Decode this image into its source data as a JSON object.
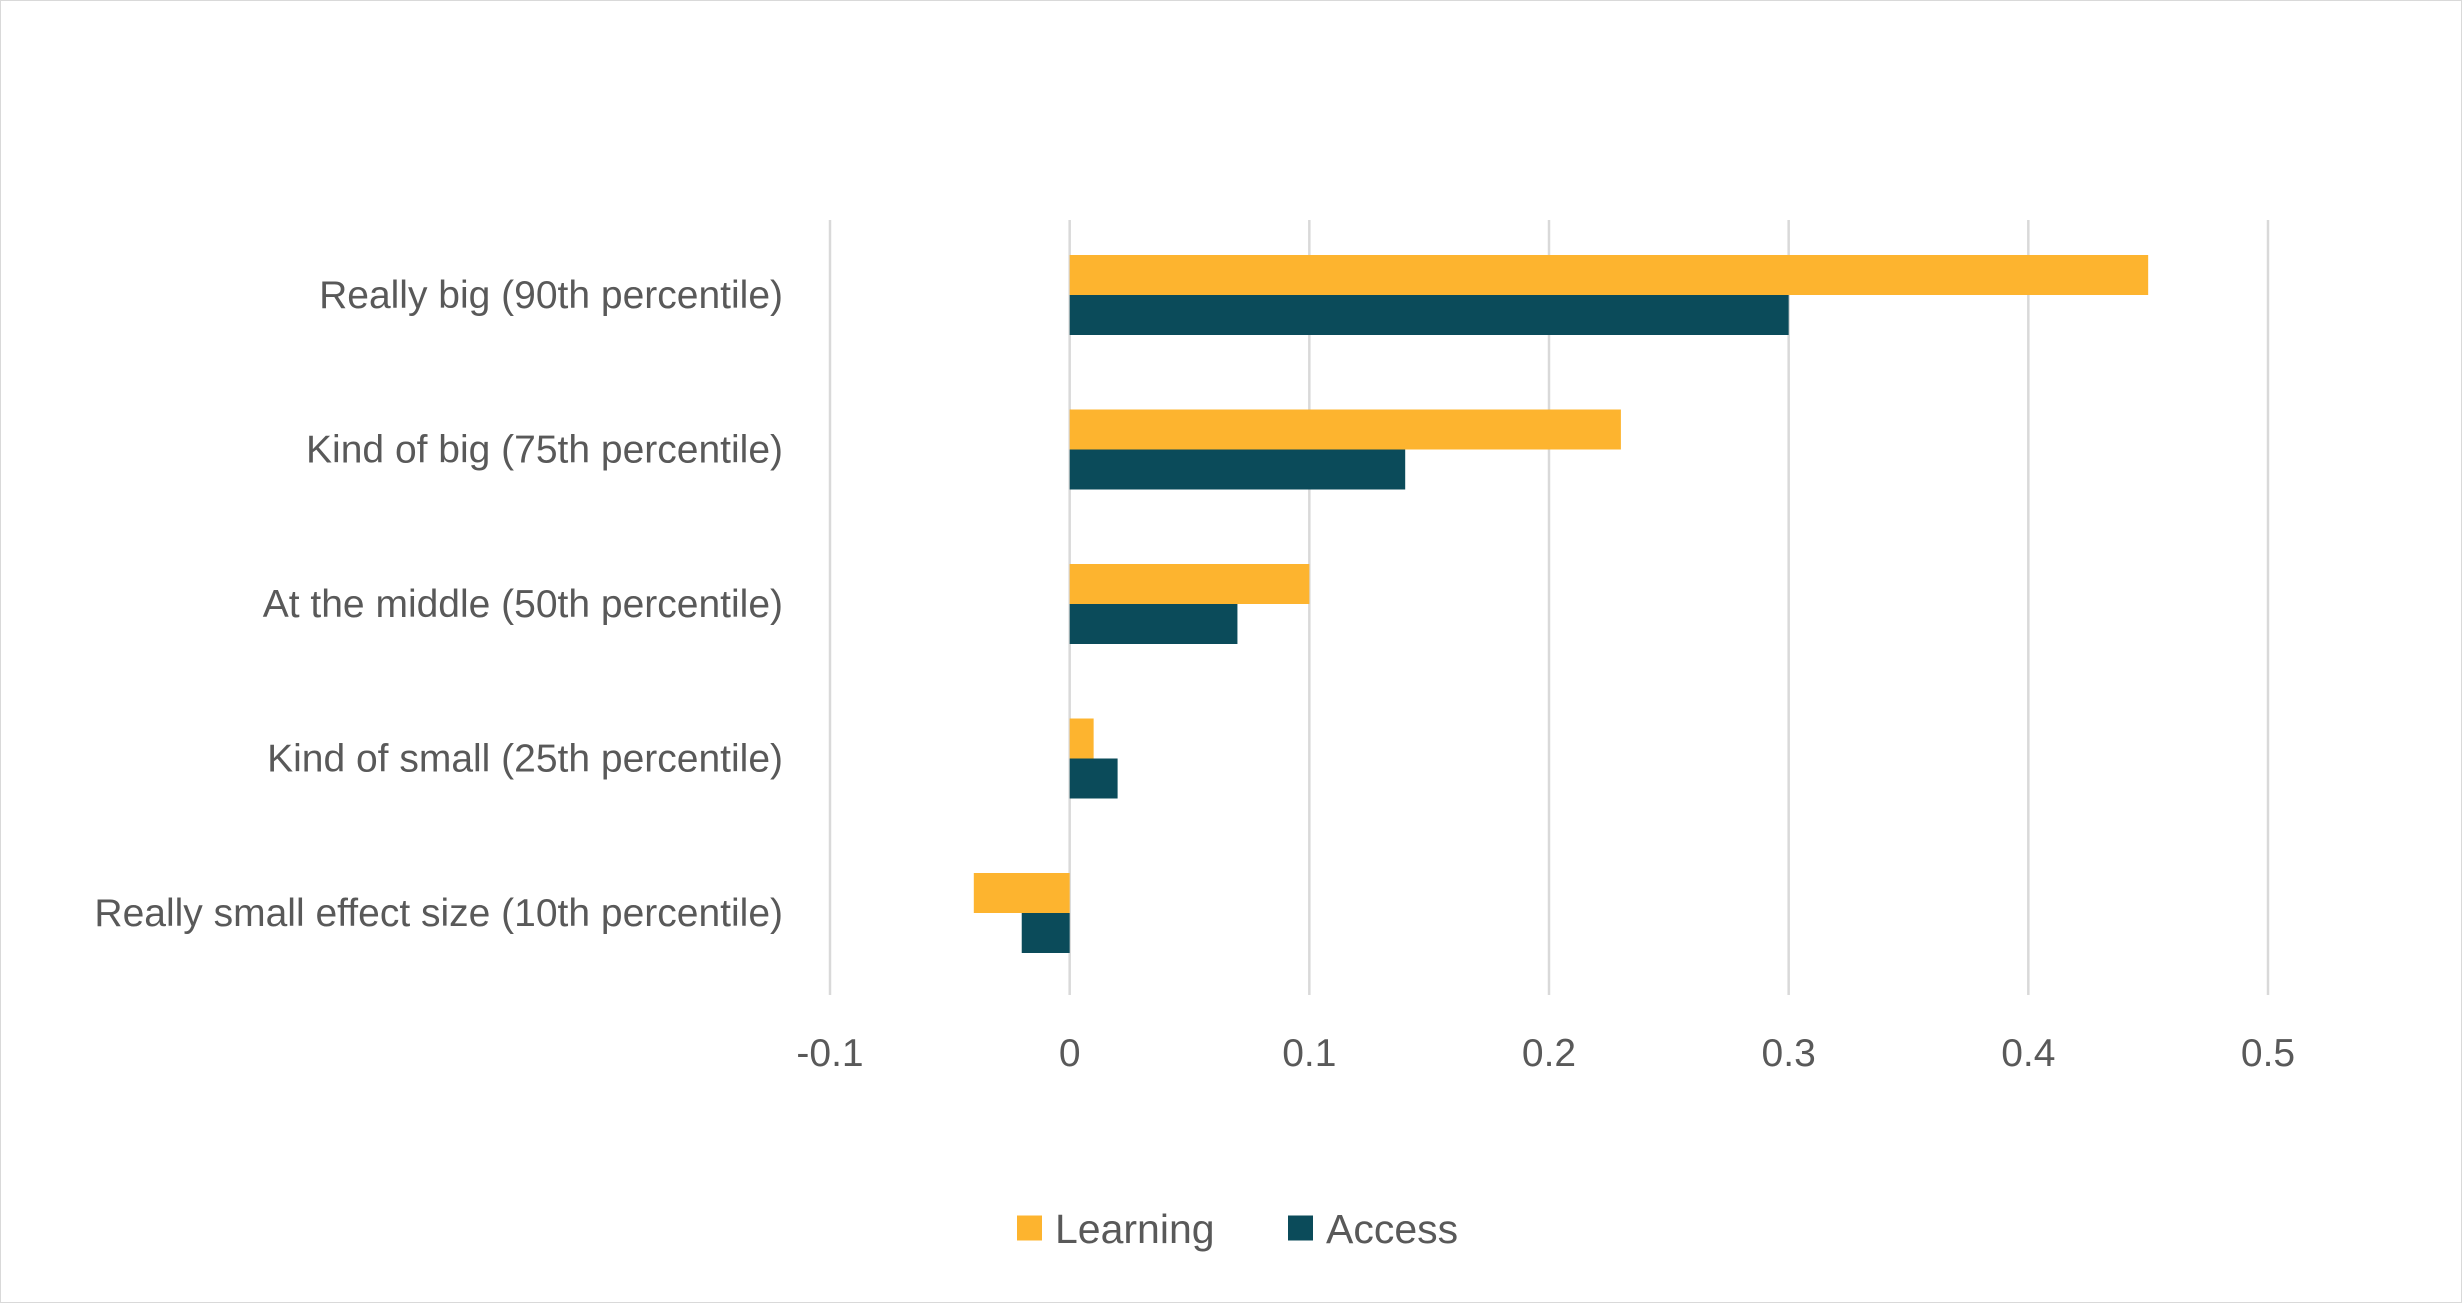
{
  "chart_data": {
    "type": "bar",
    "orientation": "horizontal",
    "title": "",
    "xlabel": "",
    "ylabel": "",
    "categories": [
      "Really big (90th percentile)",
      "Kind of big (75th percentile)",
      "At the middle (50th percentile)",
      "Kind of small (25th percentile)",
      "Really small effect size (10th percentile)"
    ],
    "series": [
      {
        "name": "Learning",
        "color": "#fdb42f",
        "values": [
          0.45,
          0.23,
          0.1,
          0.01,
          -0.04
        ]
      },
      {
        "name": "Access",
        "color": "#0b4b5a",
        "values": [
          0.3,
          0.14,
          0.07,
          0.02,
          -0.02
        ]
      }
    ],
    "xlim": [
      -0.1,
      0.5
    ],
    "xticks": [
      -0.1,
      0,
      0.1,
      0.2,
      0.3,
      0.4,
      0.5
    ],
    "xtick_labels": [
      "-0.1",
      "0",
      "0.1",
      "0.2",
      "0.3",
      "0.4",
      "0.5"
    ],
    "grid": "vertical",
    "legend": "bottom-center"
  }
}
